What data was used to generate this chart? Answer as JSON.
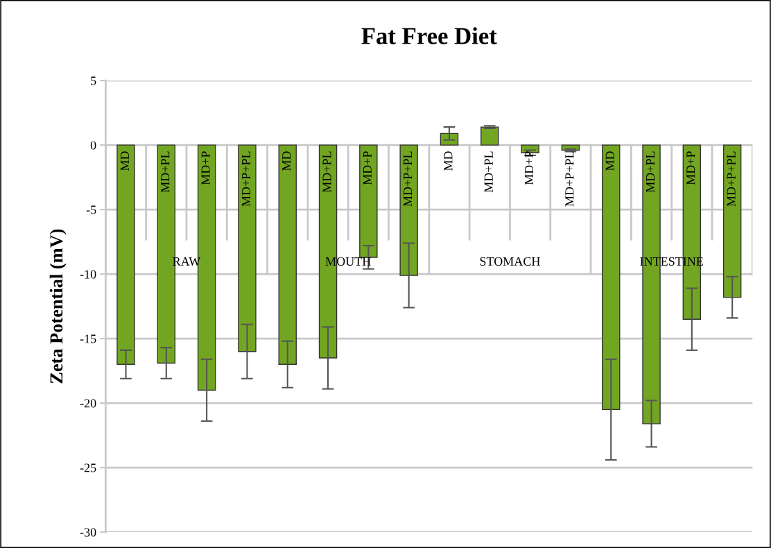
{
  "chart_data": {
    "type": "bar",
    "title": "Fat Free Diet",
    "ylabel": "Zeta Potential (mV)",
    "categories": [
      "MD",
      "MD+PL",
      "MD+P",
      "MD+P+PL",
      "MD",
      "MD+PL",
      "MD+P",
      "MD+P+PL",
      "MD",
      "MD+PL",
      "MD+P",
      "MD+P+PL",
      "MD",
      "MD+PL",
      "MD+P",
      "MD+P+PL"
    ],
    "values": [
      -17.0,
      -16.9,
      -19.0,
      -16.0,
      -17.0,
      -16.5,
      -8.7,
      -10.1,
      0.9,
      1.4,
      -0.6,
      -0.4,
      -20.5,
      -21.6,
      -13.5,
      -11.8
    ],
    "errors": [
      1.1,
      1.2,
      2.4,
      2.1,
      1.8,
      2.4,
      0.9,
      2.5,
      0.5,
      0.1,
      0.2,
      0.1,
      3.9,
      1.8,
      2.4,
      1.6
    ],
    "color": "#72a622",
    "annotations": [
      "RAW",
      "MOUTH",
      "STOMACH",
      "INTESTINE"
    ],
    "ylim": [
      -30,
      5
    ],
    "yticks": [
      -30,
      -25,
      -20,
      -15,
      -10,
      -5,
      0,
      5
    ],
    "grid": "y"
  }
}
